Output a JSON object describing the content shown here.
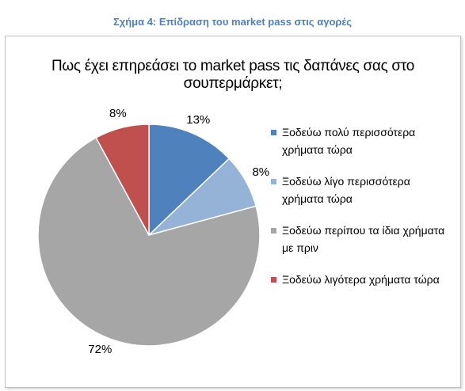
{
  "caption": "Σχήμα 4: Επίδραση του market pass στις αγορές",
  "chart_data": {
    "type": "pie",
    "title": "Πως έχει επηρεάσει το market pass τις δαπάνες σας στο σουπερμάρκετ;",
    "slices": [
      {
        "label": "Ξοδεύω πολύ περισσότερα χρήματα τώρα",
        "value": 13,
        "display": "13%",
        "color": "#4f81bd"
      },
      {
        "label": "Ξοδεύω λίγο περισσότερα χρήματα τώρα",
        "value": 8,
        "display": "8%",
        "color": "#95b3d7"
      },
      {
        "label": "Ξοδεύω περίπου τα ίδια χρήματα με πριν",
        "value": 72,
        "display": "72%",
        "color": "#a6a6a6"
      },
      {
        "label": "Ξοδεύω λιγότερα χρήματα τώρα",
        "value": 8,
        "display": "8%",
        "color": "#c0504d"
      }
    ],
    "legend_position": "right"
  }
}
